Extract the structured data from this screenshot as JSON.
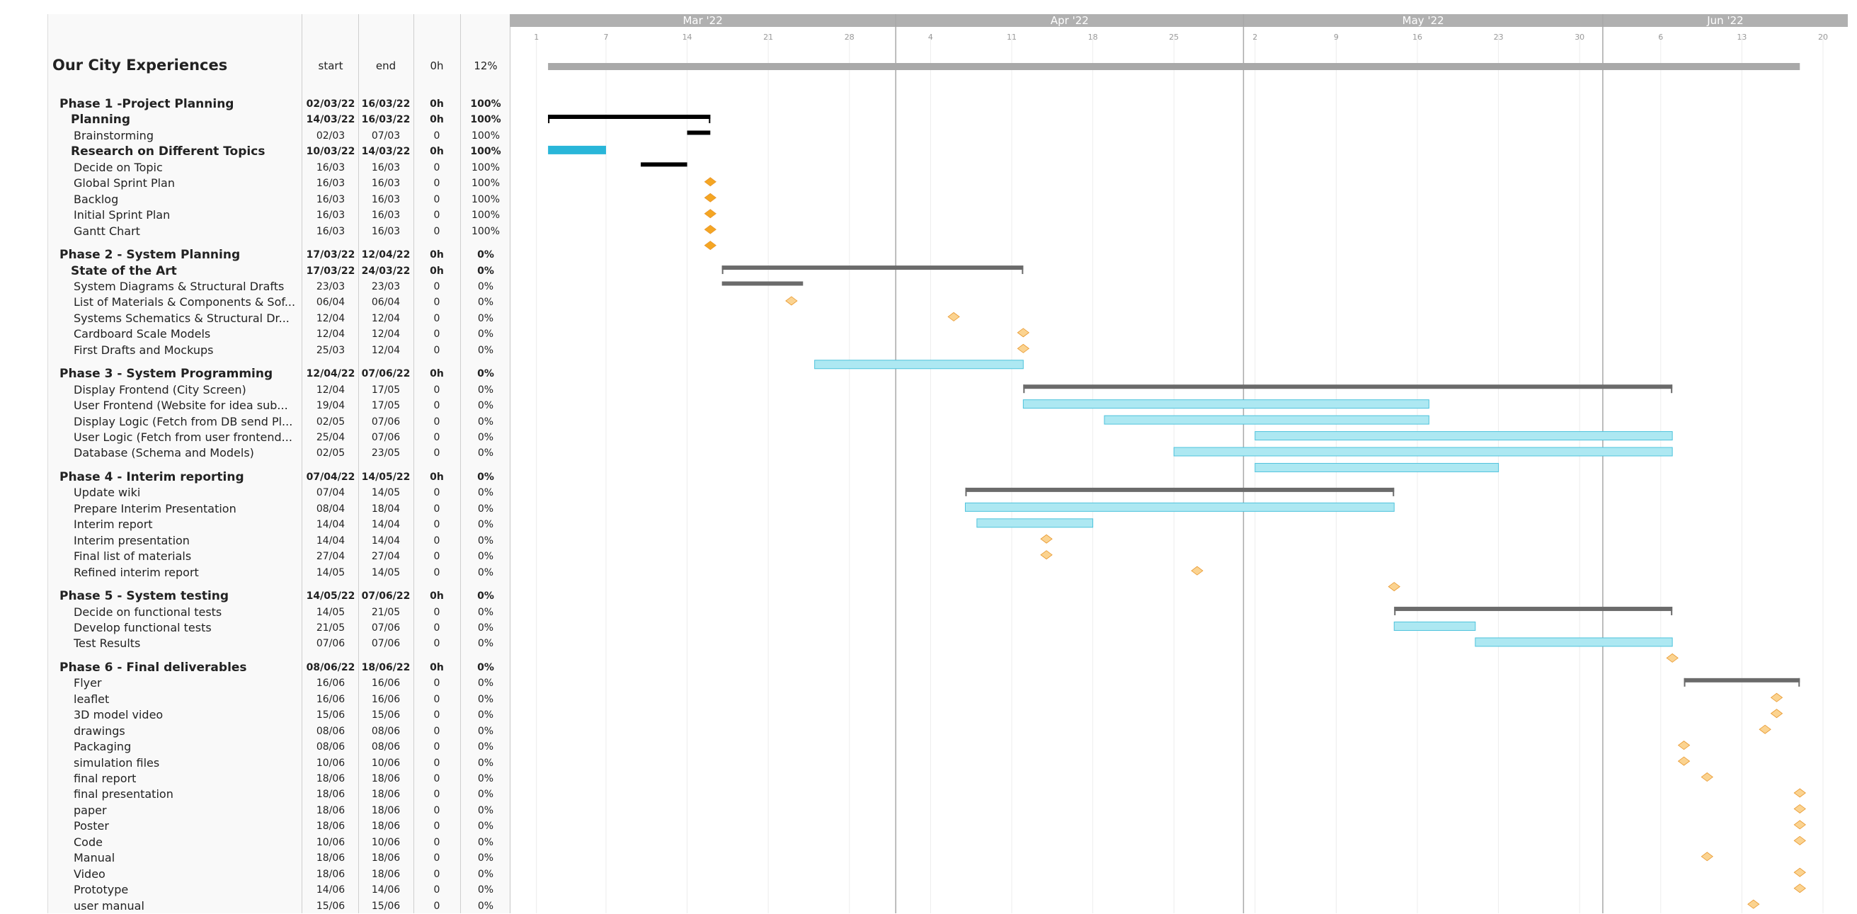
{
  "grid": {
    "headers": {
      "start": "start",
      "end": "end",
      "hours": "0h",
      "pct": "12%"
    }
  },
  "months": [
    {
      "label": "Mar '22",
      "start": "2022-02-27",
      "end": "2022-03-31"
    },
    {
      "label": "Apr '22",
      "start": "2022-04-01",
      "end": "2022-04-30"
    },
    {
      "label": "May '22",
      "start": "2022-05-01",
      "end": "2022-05-31"
    },
    {
      "label": "Jun '22",
      "start": "2022-06-01",
      "end": "2022-06-20"
    }
  ],
  "week_ticks": [
    {
      "date": "2022-03-01",
      "label": "1"
    },
    {
      "date": "2022-03-07",
      "label": "7"
    },
    {
      "date": "2022-03-14",
      "label": "14"
    },
    {
      "date": "2022-03-21",
      "label": "21"
    },
    {
      "date": "2022-03-28",
      "label": "28"
    },
    {
      "date": "2022-04-04",
      "label": "4"
    },
    {
      "date": "2022-04-11",
      "label": "11"
    },
    {
      "date": "2022-04-18",
      "label": "18"
    },
    {
      "date": "2022-04-25",
      "label": "25"
    },
    {
      "date": "2022-05-02",
      "label": "2"
    },
    {
      "date": "2022-05-09",
      "label": "9"
    },
    {
      "date": "2022-05-16",
      "label": "16"
    },
    {
      "date": "2022-05-23",
      "label": "23"
    },
    {
      "date": "2022-05-30",
      "label": "30"
    },
    {
      "date": "2022-06-06",
      "label": "6"
    },
    {
      "date": "2022-06-13",
      "label": "13"
    },
    {
      "date": "2022-06-20",
      "label": "20"
    }
  ],
  "colors": {
    "header_bar": "#b0b0b0",
    "summary_done": "#000000",
    "summary_todo": "#6b6b6b",
    "task_done": "#29b6d9",
    "task_todo": "#ade8f2",
    "task_todo_border": "#4fc3dc",
    "milestone_done": "#f5a623",
    "milestone_todo": "#fbd390"
  },
  "chart_data": {
    "type": "gantt",
    "x_range": [
      "2022-02-27",
      "2022-06-20"
    ],
    "project": {
      "name": "Our City Experiences",
      "start": "2022-03-02",
      "end": "2022-06-18",
      "progress": 12
    },
    "tasks": [
      {
        "name": "Phase 1 -Project Planning",
        "level": 1,
        "type": "summary",
        "start": "2022-03-02",
        "end": "2022-03-16",
        "start_label": "02/03/22",
        "end_label": "16/03/22",
        "hours": "0h",
        "progress": "100%"
      },
      {
        "name": "Planning",
        "level": 2,
        "type": "summary",
        "start": "2022-03-14",
        "end": "2022-03-16",
        "start_label": "14/03/22",
        "end_label": "16/03/22",
        "hours": "0h",
        "progress": "100%"
      },
      {
        "name": "Brainstorming",
        "level": 3,
        "type": "task",
        "start": "2022-03-02",
        "end": "2022-03-07",
        "start_label": "02/03",
        "end_label": "07/03",
        "hours": "0",
        "progress": "100%"
      },
      {
        "name": "Research on Different Topics",
        "level": 2,
        "type": "summary",
        "start": "2022-03-10",
        "end": "2022-03-14",
        "start_label": "10/03/22",
        "end_label": "14/03/22",
        "hours": "0h",
        "progress": "100%"
      },
      {
        "name": "Decide on Topic",
        "level": 3,
        "type": "milestone",
        "start": "2022-03-16",
        "end": "2022-03-16",
        "start_label": "16/03",
        "end_label": "16/03",
        "hours": "0",
        "progress": "100%"
      },
      {
        "name": "Global Sprint Plan",
        "level": 3,
        "type": "milestone",
        "start": "2022-03-16",
        "end": "2022-03-16",
        "start_label": "16/03",
        "end_label": "16/03",
        "hours": "0",
        "progress": "100%"
      },
      {
        "name": "Backlog",
        "level": 3,
        "type": "milestone",
        "start": "2022-03-16",
        "end": "2022-03-16",
        "start_label": "16/03",
        "end_label": "16/03",
        "hours": "0",
        "progress": "100%"
      },
      {
        "name": "Initial Sprint Plan",
        "level": 3,
        "type": "milestone",
        "start": "2022-03-16",
        "end": "2022-03-16",
        "start_label": "16/03",
        "end_label": "16/03",
        "hours": "0",
        "progress": "100%"
      },
      {
        "name": "Gantt Chart",
        "level": 3,
        "type": "milestone",
        "start": "2022-03-16",
        "end": "2022-03-16",
        "start_label": "16/03",
        "end_label": "16/03",
        "hours": "0",
        "progress": "100%",
        "group_end": true
      },
      {
        "name": "Phase 2 - System Planning",
        "level": 1,
        "type": "summary",
        "start": "2022-03-17",
        "end": "2022-04-12",
        "start_label": "17/03/22",
        "end_label": "12/04/22",
        "hours": "0h",
        "progress": "0%"
      },
      {
        "name": "State of the Art",
        "level": 2,
        "type": "summary",
        "start": "2022-03-17",
        "end": "2022-03-24",
        "start_label": "17/03/22",
        "end_label": "24/03/22",
        "hours": "0h",
        "progress": "0%"
      },
      {
        "name": "System Diagrams & Structural Drafts",
        "level": 3,
        "type": "milestone",
        "start": "2022-03-23",
        "end": "2022-03-23",
        "start_label": "23/03",
        "end_label": "23/03",
        "hours": "0",
        "progress": "0%"
      },
      {
        "name": "List of Materials & Components & Sof...",
        "level": 3,
        "type": "milestone",
        "start": "2022-04-06",
        "end": "2022-04-06",
        "start_label": "06/04",
        "end_label": "06/04",
        "hours": "0",
        "progress": "0%"
      },
      {
        "name": "Systems Schematics  & Structural Dr...",
        "level": 3,
        "type": "milestone",
        "start": "2022-04-12",
        "end": "2022-04-12",
        "start_label": "12/04",
        "end_label": "12/04",
        "hours": "0",
        "progress": "0%"
      },
      {
        "name": "Cardboard Scale Models",
        "level": 3,
        "type": "milestone",
        "start": "2022-04-12",
        "end": "2022-04-12",
        "start_label": "12/04",
        "end_label": "12/04",
        "hours": "0",
        "progress": "0%"
      },
      {
        "name": "First Drafts and Mockups",
        "level": 3,
        "type": "task",
        "start": "2022-03-25",
        "end": "2022-04-12",
        "start_label": "25/03",
        "end_label": "12/04",
        "hours": "0",
        "progress": "0%",
        "group_end": true
      },
      {
        "name": "Phase 3 - System Programming",
        "level": 1,
        "type": "summary",
        "start": "2022-04-12",
        "end": "2022-06-07",
        "start_label": "12/04/22",
        "end_label": "07/06/22",
        "hours": "0h",
        "progress": "0%"
      },
      {
        "name": "Display Frontend (City Screen)",
        "level": 3,
        "type": "task",
        "start": "2022-04-12",
        "end": "2022-05-17",
        "start_label": "12/04",
        "end_label": "17/05",
        "hours": "0",
        "progress": "0%"
      },
      {
        "name": "User Frontend (Website for idea sub...",
        "level": 3,
        "type": "task",
        "start": "2022-04-19",
        "end": "2022-05-17",
        "start_label": "19/04",
        "end_label": "17/05",
        "hours": "0",
        "progress": "0%"
      },
      {
        "name": "Display Logic (Fetch from DB send Pl...",
        "level": 3,
        "type": "task",
        "start": "2022-05-02",
        "end": "2022-06-07",
        "start_label": "02/05",
        "end_label": "07/06",
        "hours": "0",
        "progress": "0%"
      },
      {
        "name": "User Logic (Fetch from user frontend...",
        "level": 3,
        "type": "task",
        "start": "2022-04-25",
        "end": "2022-06-07",
        "start_label": "25/04",
        "end_label": "07/06",
        "hours": "0",
        "progress": "0%"
      },
      {
        "name": "Database (Schema and Models)",
        "level": 3,
        "type": "task",
        "start": "2022-05-02",
        "end": "2022-05-23",
        "start_label": "02/05",
        "end_label": "23/05",
        "hours": "0",
        "progress": "0%",
        "group_end": true
      },
      {
        "name": "Phase 4 - Interim reporting",
        "level": 1,
        "type": "summary",
        "start": "2022-04-07",
        "end": "2022-05-14",
        "start_label": "07/04/22",
        "end_label": "14/05/22",
        "hours": "0h",
        "progress": "0%"
      },
      {
        "name": "Update wiki",
        "level": 3,
        "type": "task",
        "start": "2022-04-07",
        "end": "2022-05-14",
        "start_label": "07/04",
        "end_label": "14/05",
        "hours": "0",
        "progress": "0%"
      },
      {
        "name": "Prepare Interim Presentation",
        "level": 3,
        "type": "task",
        "start": "2022-04-08",
        "end": "2022-04-18",
        "start_label": "08/04",
        "end_label": "18/04",
        "hours": "0",
        "progress": "0%"
      },
      {
        "name": "Interim report",
        "level": 3,
        "type": "milestone",
        "start": "2022-04-14",
        "end": "2022-04-14",
        "start_label": "14/04",
        "end_label": "14/04",
        "hours": "0",
        "progress": "0%"
      },
      {
        "name": "Interim presentation",
        "level": 3,
        "type": "milestone",
        "start": "2022-04-14",
        "end": "2022-04-14",
        "start_label": "14/04",
        "end_label": "14/04",
        "hours": "0",
        "progress": "0%"
      },
      {
        "name": "Final list of materials",
        "level": 3,
        "type": "milestone",
        "start": "2022-04-27",
        "end": "2022-04-27",
        "start_label": "27/04",
        "end_label": "27/04",
        "hours": "0",
        "progress": "0%"
      },
      {
        "name": "Refined interim report",
        "level": 3,
        "type": "milestone",
        "start": "2022-05-14",
        "end": "2022-05-14",
        "start_label": "14/05",
        "end_label": "14/05",
        "hours": "0",
        "progress": "0%",
        "group_end": true
      },
      {
        "name": "Phase 5 - System testing",
        "level": 1,
        "type": "summary",
        "start": "2022-05-14",
        "end": "2022-06-07",
        "start_label": "14/05/22",
        "end_label": "07/06/22",
        "hours": "0h",
        "progress": "0%"
      },
      {
        "name": "Decide on functional tests",
        "level": 3,
        "type": "task",
        "start": "2022-05-14",
        "end": "2022-05-21",
        "start_label": "14/05",
        "end_label": "21/05",
        "hours": "0",
        "progress": "0%"
      },
      {
        "name": "Develop functional tests",
        "level": 3,
        "type": "task",
        "start": "2022-05-21",
        "end": "2022-06-07",
        "start_label": "21/05",
        "end_label": "07/06",
        "hours": "0",
        "progress": "0%"
      },
      {
        "name": "Test Results",
        "level": 3,
        "type": "milestone",
        "start": "2022-06-07",
        "end": "2022-06-07",
        "start_label": "07/06",
        "end_label": "07/06",
        "hours": "0",
        "progress": "0%",
        "group_end": true
      },
      {
        "name": "Phase 6 - Final deliverables",
        "level": 1,
        "type": "summary",
        "start": "2022-06-08",
        "end": "2022-06-18",
        "start_label": "08/06/22",
        "end_label": "18/06/22",
        "hours": "0h",
        "progress": "0%"
      },
      {
        "name": "Flyer",
        "level": 3,
        "type": "milestone",
        "start": "2022-06-16",
        "end": "2022-06-16",
        "start_label": "16/06",
        "end_label": "16/06",
        "hours": "0",
        "progress": "0%"
      },
      {
        "name": "leaflet",
        "level": 3,
        "type": "milestone",
        "start": "2022-06-16",
        "end": "2022-06-16",
        "start_label": "16/06",
        "end_label": "16/06",
        "hours": "0",
        "progress": "0%"
      },
      {
        "name": "3D model video",
        "level": 3,
        "type": "milestone",
        "start": "2022-06-15",
        "end": "2022-06-15",
        "start_label": "15/06",
        "end_label": "15/06",
        "hours": "0",
        "progress": "0%"
      },
      {
        "name": "drawings",
        "level": 3,
        "type": "milestone",
        "start": "2022-06-08",
        "end": "2022-06-08",
        "start_label": "08/06",
        "end_label": "08/06",
        "hours": "0",
        "progress": "0%"
      },
      {
        "name": "Packaging",
        "level": 3,
        "type": "milestone",
        "start": "2022-06-08",
        "end": "2022-06-08",
        "start_label": "08/06",
        "end_label": "08/06",
        "hours": "0",
        "progress": "0%"
      },
      {
        "name": "simulation files",
        "level": 3,
        "type": "milestone",
        "start": "2022-06-10",
        "end": "2022-06-10",
        "start_label": "10/06",
        "end_label": "10/06",
        "hours": "0",
        "progress": "0%"
      },
      {
        "name": "final report",
        "level": 3,
        "type": "milestone",
        "start": "2022-06-18",
        "end": "2022-06-18",
        "start_label": "18/06",
        "end_label": "18/06",
        "hours": "0",
        "progress": "0%"
      },
      {
        "name": "final presentation",
        "level": 3,
        "type": "milestone",
        "start": "2022-06-18",
        "end": "2022-06-18",
        "start_label": "18/06",
        "end_label": "18/06",
        "hours": "0",
        "progress": "0%"
      },
      {
        "name": "paper",
        "level": 3,
        "type": "milestone",
        "start": "2022-06-18",
        "end": "2022-06-18",
        "start_label": "18/06",
        "end_label": "18/06",
        "hours": "0",
        "progress": "0%"
      },
      {
        "name": "Poster",
        "level": 3,
        "type": "milestone",
        "start": "2022-06-18",
        "end": "2022-06-18",
        "start_label": "18/06",
        "end_label": "18/06",
        "hours": "0",
        "progress": "0%"
      },
      {
        "name": "Code",
        "level": 3,
        "type": "milestone",
        "start": "2022-06-10",
        "end": "2022-06-10",
        "start_label": "10/06",
        "end_label": "10/06",
        "hours": "0",
        "progress": "0%"
      },
      {
        "name": "Manual",
        "level": 3,
        "type": "milestone",
        "start": "2022-06-18",
        "end": "2022-06-18",
        "start_label": "18/06",
        "end_label": "18/06",
        "hours": "0",
        "progress": "0%"
      },
      {
        "name": "Video",
        "level": 3,
        "type": "milestone",
        "start": "2022-06-18",
        "end": "2022-06-18",
        "start_label": "18/06",
        "end_label": "18/06",
        "hours": "0",
        "progress": "0%"
      },
      {
        "name": "Prototype",
        "level": 3,
        "type": "milestone",
        "start": "2022-06-14",
        "end": "2022-06-14",
        "start_label": "14/06",
        "end_label": "14/06",
        "hours": "0",
        "progress": "0%"
      },
      {
        "name": "user manual",
        "level": 3,
        "type": "milestone",
        "start": "2022-06-15",
        "end": "2022-06-15",
        "start_label": "15/06",
        "end_label": "15/06",
        "hours": "0",
        "progress": "0%"
      }
    ]
  }
}
